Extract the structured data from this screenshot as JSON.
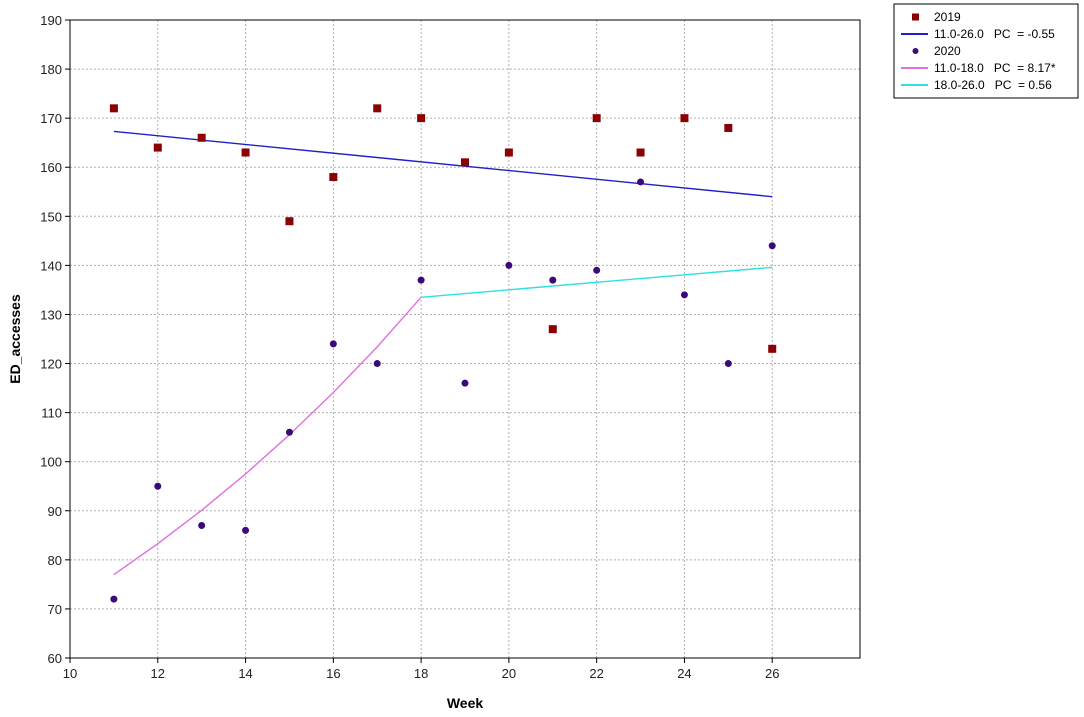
{
  "chart_data": {
    "type": "scatter",
    "xlabel": "Week",
    "ylabel": "ED_accesses",
    "xlim": [
      10,
      28
    ],
    "ylim": [
      60,
      190
    ],
    "x_ticks": [
      "10",
      "12",
      "14",
      "16",
      "18",
      "20",
      "22",
      "24",
      "26"
    ],
    "y_ticks": [
      "60",
      "70",
      "80",
      "90",
      "100",
      "110",
      "120",
      "130",
      "140",
      "150",
      "160",
      "170",
      "180",
      "190"
    ],
    "grid": true,
    "legend_position": "top-right, outside plot",
    "series": [
      {
        "name": "2019",
        "kind": "points",
        "marker": "square",
        "color": "#8b0000",
        "x": [
          11,
          12,
          13,
          14,
          15,
          16,
          17,
          18,
          19,
          20,
          21,
          22,
          23,
          24,
          25,
          26
        ],
        "y": [
          172,
          164,
          166,
          163,
          149,
          158,
          172,
          170,
          161,
          163,
          127,
          170,
          163,
          170,
          168,
          123
        ]
      },
      {
        "name": "11.0-26.0   PC  = -0.55",
        "kind": "line",
        "color": "#2020c8",
        "x": [
          11,
          26
        ],
        "y": [
          167.3,
          154
        ]
      },
      {
        "name": "2020",
        "kind": "points",
        "marker": "circle",
        "color": "#3a0a78",
        "x": [
          11,
          12,
          13,
          14,
          15,
          16,
          17,
          18,
          19,
          20,
          21,
          22,
          23,
          24,
          25,
          26
        ],
        "y": [
          72,
          95,
          87,
          86,
          106,
          124,
          120,
          137,
          116,
          140,
          137,
          139,
          157,
          134,
          120,
          144
        ]
      },
      {
        "name": "11.0-18.0   PC  = 8.17*",
        "kind": "line",
        "color": "#e070e0",
        "x": [
          11,
          12,
          13,
          14,
          15,
          16,
          17,
          18
        ],
        "y": [
          77,
          83.3,
          90.1,
          97.5,
          105.5,
          114.1,
          123.4,
          133.5
        ]
      },
      {
        "name": "18.0-26.0   PC  = 0.56",
        "kind": "line",
        "color": "#30e0e0",
        "x": [
          18,
          26
        ],
        "y": [
          133.5,
          139.6
        ]
      }
    ]
  }
}
